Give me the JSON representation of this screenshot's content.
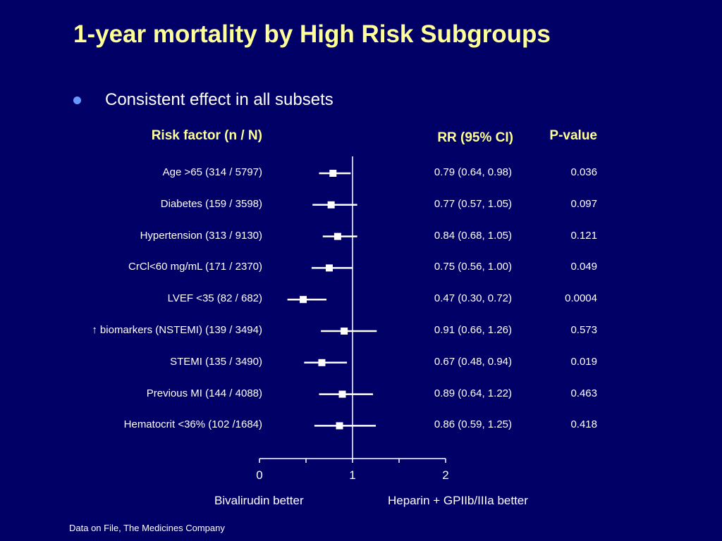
{
  "title": "1-year mortality by High Risk Subgroups",
  "bullet": "Consistent effect in all subsets",
  "headers": {
    "risk_factor": "Risk factor (n / N)",
    "rr": "RR (95% CI)",
    "pvalue": "P-value"
  },
  "arrow_symbol": "↑",
  "rows": [
    {
      "label": "Age >65 (314 / 5797)",
      "rr_text": "0.79 (0.64, 0.98)",
      "p": "0.036"
    },
    {
      "label": "Diabetes (159 / 3598)",
      "rr_text": "0.77 (0.57, 1.05)",
      "p": "0.097"
    },
    {
      "label": "Hypertension (313 / 9130)",
      "rr_text": "0.84 (0.68, 1.05)",
      "p": "0.121"
    },
    {
      "label": "CrCl<60 mg/mL (171 / 2370)",
      "rr_text": "0.75 (0.56, 1.00)",
      "p": "0.049"
    },
    {
      "label": "LVEF <35 (82 / 682)",
      "rr_text": "0.47 (0.30, 0.72)",
      "p": "0.0004"
    },
    {
      "label": "biomarkers (NSTEMI) (139 / 3494)",
      "rr_text": "0.91 (0.66, 1.26)",
      "p": "0.573"
    },
    {
      "label": "STEMI (135 / 3490)",
      "rr_text": "0.67 (0.48, 0.94)",
      "p": "0.019"
    },
    {
      "label": "Previous MI (144 / 4088)",
      "rr_text": "0.89 (0.64, 1.22)",
      "p": "0.463"
    },
    {
      "label": "Hematocrit <36% (102 /1684)",
      "rr_text": "0.86 (0.59, 1.25)",
      "p": "0.418"
    }
  ],
  "axis": {
    "ticks": [
      "0",
      "1",
      "2"
    ],
    "left_label": "Bivalirudin better",
    "right_label": "Heparin + GPIIb/IIIa better"
  },
  "source": "Data on File, The Medicines Company",
  "colors": {
    "background": "#000066",
    "title": "#ffff99",
    "text": "#ffffff",
    "bullet": "#6699ff"
  },
  "chart_data": {
    "type": "forest",
    "xlim": [
      0,
      2
    ],
    "reference_line": 1,
    "categories": [
      "Age >65 (314 / 5797)",
      "Diabetes (159 / 3598)",
      "Hypertension (313 / 9130)",
      "CrCl<60 mg/mL (171 / 2370)",
      "LVEF <35 (82 / 682)",
      "biomarkers (NSTEMI) (139 / 3494)",
      "STEMI (135 / 3490)",
      "Previous MI (144 / 4088)",
      "Hematocrit <36% (102 /1684)"
    ],
    "estimates": [
      0.79,
      0.77,
      0.84,
      0.75,
      0.47,
      0.91,
      0.67,
      0.89,
      0.86
    ],
    "ci_low": [
      0.64,
      0.57,
      0.68,
      0.56,
      0.3,
      0.66,
      0.48,
      0.64,
      0.59
    ],
    "ci_high": [
      0.98,
      1.05,
      1.05,
      1.0,
      0.72,
      1.26,
      0.94,
      1.22,
      1.25
    ],
    "p_values": [
      "0.036",
      "0.097",
      "0.121",
      "0.049",
      "0.0004",
      "0.573",
      "0.019",
      "0.463",
      "0.418"
    ]
  }
}
